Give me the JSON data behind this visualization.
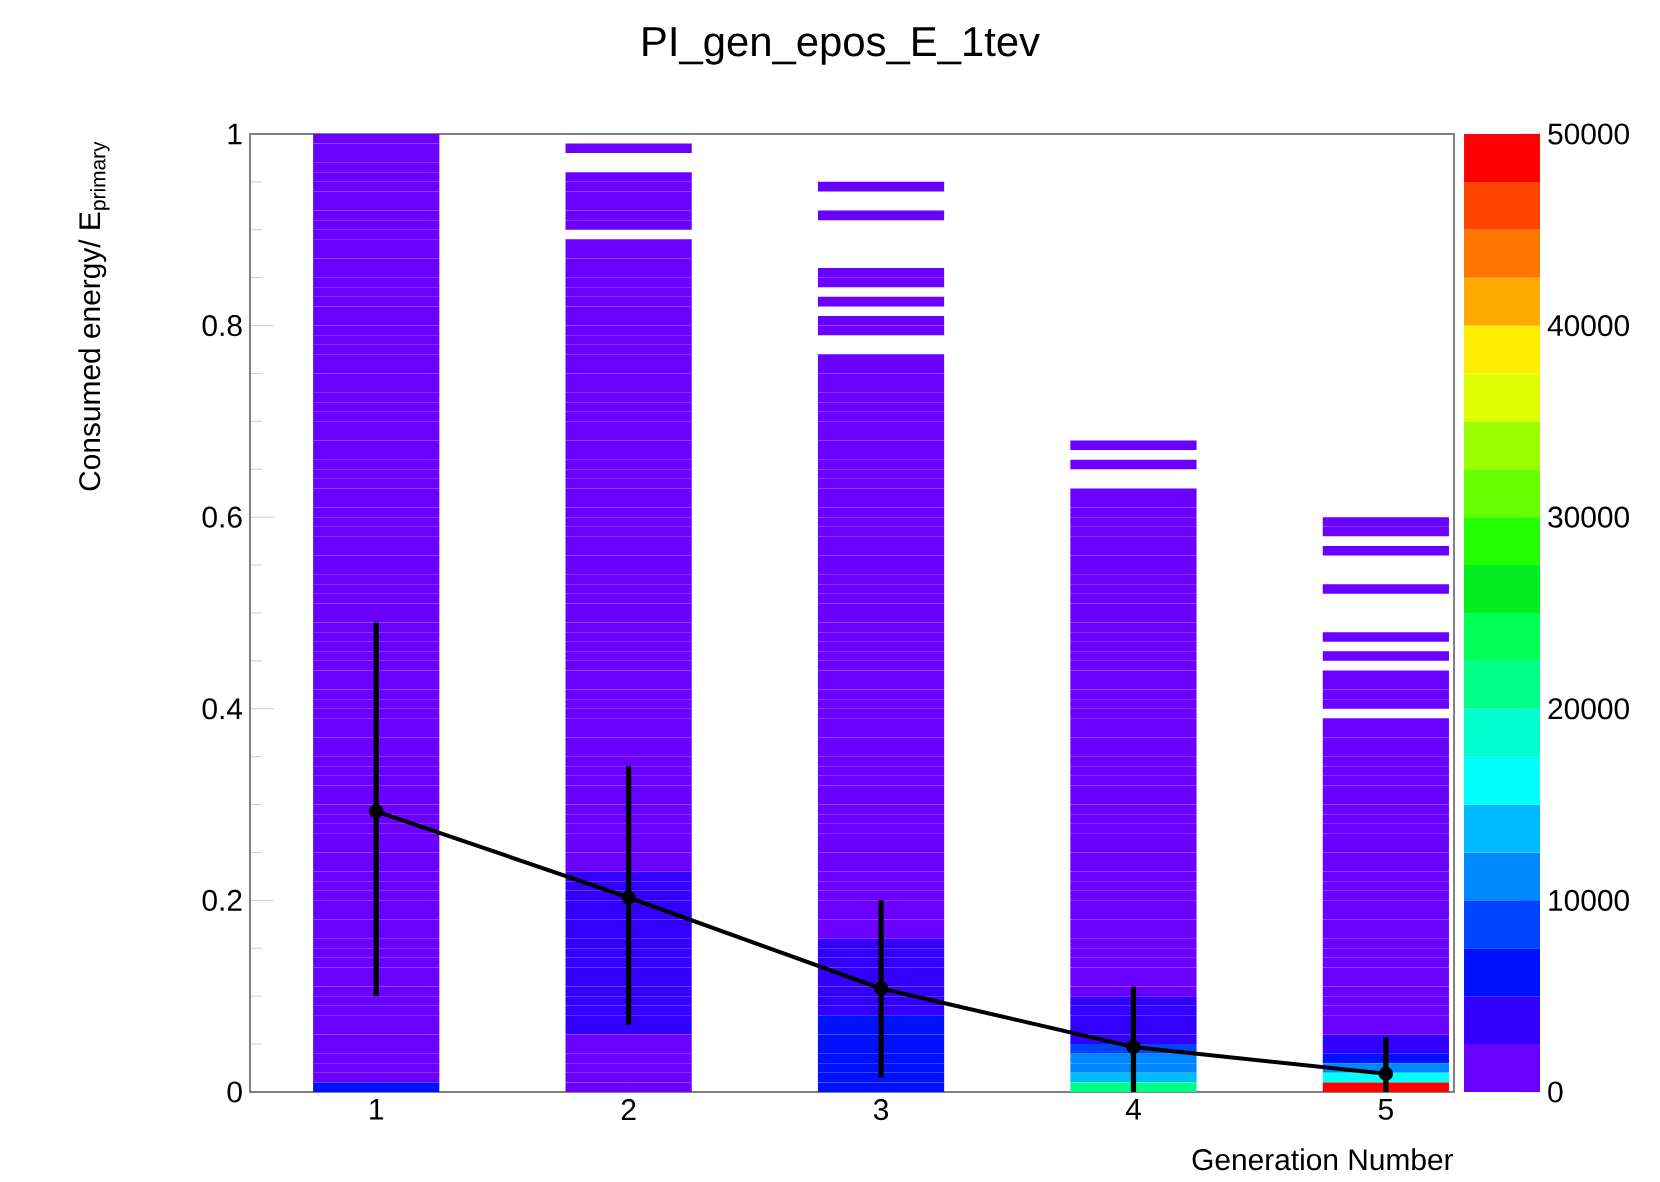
{
  "chart_data": {
    "type": "heatmap",
    "title": "PI_gen_epos_E_1tev",
    "xlabel": "Generation Number",
    "ylabel": "Consumed energy/ E$_{primary}$",
    "categories": [
      "1",
      "2",
      "3",
      "4",
      "5"
    ],
    "ylim": [
      0,
      1
    ],
    "yticks": [
      0,
      0.2,
      0.4,
      0.6,
      0.8,
      1
    ],
    "clim": [
      0,
      50000
    ],
    "cticks": [
      0,
      10000,
      20000,
      30000,
      40000,
      50000
    ],
    "marker": "circle",
    "series": [
      {
        "type": "line",
        "color": "#000000",
        "values": [
          0.293,
          0.203,
          0.108,
          0.047,
          0.019
        ],
        "errors": [
          [
            0.1,
            0.49
          ],
          [
            0.07,
            0.34
          ],
          [
            0.015,
            0.2
          ],
          [
            0,
            0.11
          ],
          [
            0,
            0.057
          ]
        ]
      }
    ],
    "cells": [
      [
        1000,
        null,
        null,
        null,
        null
      ],
      [
        1000,
        1000,
        null,
        null,
        null
      ],
      [
        1000,
        null,
        null,
        null,
        null
      ],
      [
        1000,
        null,
        null,
        null,
        null
      ],
      [
        1000,
        1000,
        null,
        null,
        null
      ],
      [
        1000,
        1000,
        1000,
        null,
        null
      ],
      [
        1000,
        1000,
        null,
        null,
        null
      ],
      [
        1000,
        1000,
        null,
        null,
        null
      ],
      [
        1000,
        1000,
        1000,
        null,
        null
      ],
      [
        1000,
        1000,
        null,
        null,
        null
      ],
      [
        1000,
        null,
        null,
        null,
        null
      ],
      [
        1000,
        1000,
        null,
        null,
        null
      ],
      [
        1000,
        1000,
        null,
        null,
        null
      ],
      [
        1000,
        1000,
        null,
        null,
        null
      ],
      [
        1000,
        1000,
        1000,
        null,
        null
      ],
      [
        1000,
        1000,
        1000,
        null,
        null
      ],
      [
        1000,
        1000,
        null,
        null,
        null
      ],
      [
        1000,
        1000,
        1000,
        null,
        null
      ],
      [
        1000,
        1000,
        null,
        null,
        null
      ],
      [
        1000,
        1000,
        1000,
        null,
        null
      ],
      [
        1000,
        1000,
        1000,
        null,
        null
      ],
      [
        1000,
        1000,
        null,
        null,
        null
      ],
      [
        1000,
        1000,
        null,
        null,
        null
      ],
      [
        1000,
        1000,
        1000,
        null,
        null
      ],
      [
        1000,
        1000,
        1000,
        null,
        null
      ],
      [
        1000,
        1000,
        1000,
        null,
        null
      ],
      [
        1000,
        1000,
        1000,
        null,
        null
      ],
      [
        1000,
        1000,
        1000,
        null,
        null
      ],
      [
        1000,
        1000,
        1000,
        null,
        null
      ],
      [
        1000,
        1000,
        1000,
        null,
        null
      ],
      [
        1000,
        1000,
        1000,
        null,
        null
      ],
      [
        1000,
        1000,
        1000,
        null,
        null
      ],
      [
        1000,
        1000,
        1000,
        1000,
        null
      ],
      [
        1000,
        1000,
        1000,
        null,
        null
      ],
      [
        1000,
        1000,
        1000,
        1000,
        null
      ],
      [
        1000,
        1000,
        1000,
        null,
        null
      ],
      [
        1000,
        1000,
        1000,
        null,
        null
      ],
      [
        1000,
        1000,
        1000,
        1000,
        null
      ],
      [
        1000,
        1000,
        1000,
        1000,
        null
      ],
      [
        1000,
        1000,
        1000,
        1000,
        null
      ],
      [
        1000,
        1000,
        1000,
        1000,
        1000
      ],
      [
        1000,
        1000,
        1000,
        1000,
        1000
      ],
      [
        1000,
        1000,
        1000,
        1000,
        null
      ],
      [
        1000,
        1000,
        1000,
        1000,
        1000
      ],
      [
        1000,
        1000,
        1000,
        1000,
        null
      ],
      [
        1000,
        1000,
        1000,
        1000,
        null
      ],
      [
        1000,
        1000,
        1000,
        1000,
        null
      ],
      [
        1000,
        1000,
        1000,
        1000,
        1000
      ],
      [
        1000,
        1000,
        1000,
        1000,
        null
      ],
      [
        1000,
        1000,
        1000,
        1000,
        null
      ],
      [
        1000,
        1000,
        1000,
        1000,
        null
      ],
      [
        1000,
        1000,
        1000,
        1000,
        null
      ],
      [
        1000,
        1000,
        1000,
        1000,
        1000
      ],
      [
        1000,
        1000,
        1000,
        1000,
        null
      ],
      [
        1000,
        1000,
        1000,
        1000,
        1000
      ],
      [
        1000,
        1000,
        1000,
        1000,
        null
      ],
      [
        1000,
        1000,
        1000,
        1000,
        1000
      ],
      [
        1000,
        1000,
        1000,
        1000,
        1000
      ],
      [
        1000,
        1000,
        1000,
        1000,
        1000
      ],
      [
        1000,
        1000,
        1000,
        1000,
        1000
      ],
      [
        1000,
        1000,
        1000,
        1000,
        null
      ],
      [
        1000,
        1000,
        1000,
        1000,
        1000
      ],
      [
        1000,
        1000,
        1000,
        1000,
        1000
      ],
      [
        1000,
        1000,
        1000,
        1000,
        1000
      ],
      [
        1000,
        1000,
        1000,
        1000,
        1000
      ],
      [
        1000,
        1000,
        1000,
        1000,
        1000
      ],
      [
        1000,
        1000,
        1000,
        1000,
        1000
      ],
      [
        1000,
        1000,
        1000,
        1000,
        1000
      ],
      [
        1000,
        1000,
        1000,
        1000,
        1000
      ],
      [
        1000,
        1000,
        1000,
        1000,
        1000
      ],
      [
        1000,
        1000,
        1000,
        1000,
        1000
      ],
      [
        1000,
        1000,
        1000,
        1000,
        1000
      ],
      [
        1000,
        1000,
        1000,
        1000,
        1000
      ],
      [
        1000,
        1000,
        1000,
        1000,
        1000
      ],
      [
        1000,
        1000,
        1000,
        1000,
        1000
      ],
      [
        1000,
        1000,
        1000,
        1000,
        1000
      ],
      [
        1000,
        1000,
        1000,
        1000,
        1000
      ],
      [
        1000,
        4000,
        1000,
        1000,
        1000
      ],
      [
        1000,
        4000,
        1000,
        1000,
        1000
      ],
      [
        1000,
        4000,
        1000,
        1000,
        1000
      ],
      [
        1000,
        4000,
        1000,
        1000,
        1000
      ],
      [
        1000,
        4000,
        1000,
        1000,
        1000
      ],
      [
        1000,
        4000,
        1000,
        1000,
        1000
      ],
      [
        1000,
        4000,
        1000,
        1000,
        1000
      ],
      [
        1000,
        4000,
        4000,
        1000,
        1000
      ],
      [
        1000,
        4000,
        4000,
        1000,
        1000
      ],
      [
        1000,
        4000,
        4000,
        1000,
        1000
      ],
      [
        1000,
        4000,
        4000,
        1000,
        1000
      ],
      [
        1000,
        4000,
        4000,
        1000,
        1000
      ],
      [
        1000,
        4000,
        4000,
        1000,
        1000
      ],
      [
        1000,
        4000,
        4000,
        4000,
        1000
      ],
      [
        1000,
        4000,
        4000,
        4000,
        1000
      ],
      [
        1000,
        4000,
        6000,
        4000,
        1000
      ],
      [
        1000,
        4000,
        6000,
        4000,
        1000
      ],
      [
        1000,
        1000,
        6000,
        4000,
        4000
      ],
      [
        1000,
        1000,
        6000,
        9000,
        4000
      ],
      [
        1000,
        1000,
        6000,
        11000,
        6000
      ],
      [
        1000,
        1000,
        6000,
        12000,
        12000
      ],
      [
        1000,
        1000,
        6000,
        14000,
        16000
      ],
      [
        6000,
        1000,
        6000,
        22000,
        49000
      ]
    ]
  }
}
